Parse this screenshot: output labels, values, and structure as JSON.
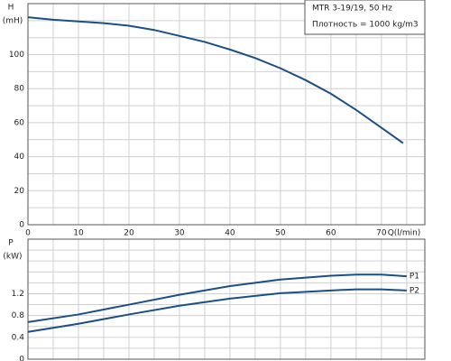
{
  "chart_data": [
    {
      "type": "line",
      "y_label": "H",
      "y_unit": "(mH)",
      "x_label": "Q(l/min)",
      "info": [
        "MTR 3-19/19, 50 Hz",
        "Плотность = 1000 kg/m3"
      ],
      "x": [
        0,
        5,
        10,
        15,
        20,
        25,
        30,
        35,
        40,
        45,
        50,
        55,
        60,
        65,
        70,
        74.3
      ],
      "series": [
        {
          "color": "#1b4f86",
          "values": [
            122,
            120.5,
            119.5,
            118.5,
            117,
            114.5,
            111,
            107.5,
            103,
            98,
            92,
            85,
            77,
            67.5,
            57,
            48
          ]
        }
      ],
      "xlim": [
        0,
        78.6
      ],
      "xticks": [
        0,
        10,
        20,
        30,
        40,
        50,
        60,
        70
      ],
      "x_minor_grid": [
        5,
        15,
        25,
        35,
        45,
        55,
        65,
        75
      ],
      "ylim": [
        0,
        130
      ],
      "yticks": [
        0,
        20,
        40,
        60,
        80,
        100
      ],
      "y_minor_grid": [
        10,
        30,
        50,
        70,
        90,
        110,
        120
      ],
      "grid": true
    },
    {
      "type": "line",
      "y_label": "P",
      "y_unit": "(kW)",
      "x": [
        0,
        10,
        20,
        30,
        40,
        50,
        60,
        65,
        70,
        75
      ],
      "series": [
        {
          "name": "P1",
          "color": "#1b4f86",
          "values": [
            0.68,
            0.82,
            1.0,
            1.18,
            1.34,
            1.46,
            1.53,
            1.55,
            1.55,
            1.52
          ]
        },
        {
          "name": "P2",
          "color": "#1b4f86",
          "values": [
            0.5,
            0.65,
            0.82,
            0.98,
            1.11,
            1.21,
            1.26,
            1.28,
            1.28,
            1.26
          ]
        }
      ],
      "xlim": [
        0,
        78.6
      ],
      "xticks": [
        0,
        10,
        20,
        30,
        40,
        50,
        60,
        70
      ],
      "x_minor_grid": [
        5,
        15,
        25,
        35,
        45,
        55,
        65,
        75
      ],
      "ylim": [
        0,
        2.2
      ],
      "yticks": [
        0,
        0.4,
        0.8,
        1.2
      ],
      "y_minor_grid": [
        0.2,
        0.6,
        1.0,
        1.4,
        1.6,
        1.8,
        2.0
      ],
      "grid": true
    }
  ]
}
